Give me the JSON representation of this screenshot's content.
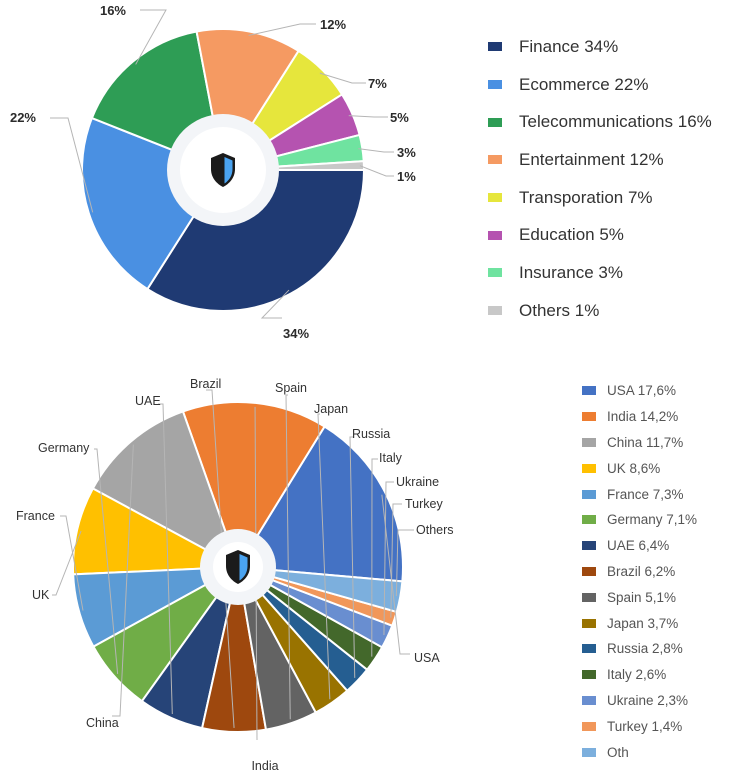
{
  "chart_data": [
    {
      "type": "pie",
      "variant": "donut",
      "slices": [
        {
          "name": "Finance",
          "value": 34,
          "label": "34%",
          "color": "#1f3a73"
        },
        {
          "name": "Ecommerce",
          "value": 22,
          "label": "22%",
          "color": "#4a90e2"
        },
        {
          "name": "Telecommunications",
          "value": 16,
          "label": "16%",
          "color": "#2e9d55"
        },
        {
          "name": "Entertainment",
          "value": 12,
          "label": "12%",
          "color": "#f59a62"
        },
        {
          "name": "Transporation",
          "value": 7,
          "label": "7%",
          "color": "#e6e63c"
        },
        {
          "name": "Education",
          "value": 5,
          "label": "5%",
          "color": "#b553b0"
        },
        {
          "name": "Insurance",
          "value": 3,
          "label": "3%",
          "color": "#6fe3a0"
        },
        {
          "name": "Others",
          "value": 1,
          "label": "1%",
          "color": "#c8c8c8"
        }
      ],
      "legend": [
        "Finance 34%",
        "Ecommerce 22%",
        "Telecommunications 16%",
        "Entertainment 12%",
        "Transporation 7%",
        "Education 5%",
        "Insurance 3%",
        "Others 1%"
      ],
      "legend_position": "right",
      "center_icon": "shield-icon"
    },
    {
      "type": "pie",
      "variant": "donut",
      "slices": [
        {
          "name": "USA",
          "value": 17.6,
          "color": "#4472c4"
        },
        {
          "name": "India",
          "value": 14.2,
          "color": "#ed7d31"
        },
        {
          "name": "China",
          "value": 11.7,
          "color": "#a5a5a5"
        },
        {
          "name": "UK",
          "value": 8.6,
          "color": "#ffc000"
        },
        {
          "name": "France",
          "value": 7.3,
          "color": "#5b9bd5"
        },
        {
          "name": "Germany",
          "value": 7.1,
          "color": "#70ad47"
        },
        {
          "name": "UAE",
          "value": 6.4,
          "color": "#264478"
        },
        {
          "name": "Brazil",
          "value": 6.2,
          "color": "#9e480e"
        },
        {
          "name": "Spain",
          "value": 5.1,
          "color": "#636363"
        },
        {
          "name": "Japan",
          "value": 3.7,
          "color": "#997300"
        },
        {
          "name": "Russia",
          "value": 2.8,
          "color": "#255e91"
        },
        {
          "name": "Italy",
          "value": 2.6,
          "color": "#43682b"
        },
        {
          "name": "Ukraine",
          "value": 2.3,
          "color": "#698ed0"
        },
        {
          "name": "Turkey",
          "value": 1.4,
          "color": "#f1975a"
        },
        {
          "name": "Others",
          "value": 3.0,
          "color": "#7cafdd"
        }
      ],
      "legend": [
        "USA 17,6%",
        "India 14,2%",
        "China 11,7%",
        "UK 8,6%",
        "France 7,3%",
        "Germany 7,1%",
        "UAE 6,4%",
        "Brazil 6,2%",
        "Spain 5,1%",
        "Japan 3,7%",
        "Russia 2,8%",
        "Italy 2,6%",
        "Ukraine 2,3%",
        "Turkey 1,4%",
        "Oth"
      ],
      "legend_position": "right",
      "center_icon": "shield-icon"
    }
  ]
}
